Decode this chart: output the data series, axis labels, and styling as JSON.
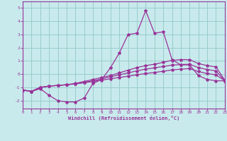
{
  "background_color": "#c8eaec",
  "line_color": "#993399",
  "grid_color": "#99cccc",
  "xlabel": "Windchill (Refroidissement éolien,°C)",
  "xlim": [
    0,
    23
  ],
  "ylim": [
    -2.6,
    5.5
  ],
  "yticks": [
    -2,
    -1,
    0,
    1,
    2,
    3,
    4,
    5
  ],
  "xticks": [
    0,
    1,
    2,
    3,
    4,
    5,
    6,
    7,
    8,
    9,
    10,
    11,
    12,
    13,
    14,
    15,
    16,
    17,
    18,
    19,
    20,
    21,
    22,
    23
  ],
  "series": [
    {
      "x": [
        0,
        1,
        2,
        3,
        4,
        5,
        6,
        7,
        8,
        9,
        10,
        11,
        12,
        13,
        14,
        15,
        16,
        17,
        18,
        19,
        20,
        21,
        22,
        23
      ],
      "y": [
        -1.2,
        -1.3,
        -1.1,
        -1.6,
        -2.0,
        -2.1,
        -2.1,
        -1.8,
        -0.7,
        -0.4,
        0.5,
        1.6,
        3.0,
        3.1,
        4.8,
        3.1,
        3.2,
        1.1,
        0.7,
        0.7,
        -0.1,
        -0.4,
        -0.5,
        -0.5
      ]
    },
    {
      "x": [
        0,
        1,
        2,
        3,
        4,
        5,
        6,
        7,
        8,
        9,
        10,
        11,
        12,
        13,
        14,
        15,
        16,
        17,
        18,
        19,
        20,
        21,
        22,
        23
      ],
      "y": [
        -1.2,
        -1.3,
        -1.0,
        -0.9,
        -0.85,
        -0.8,
        -0.7,
        -0.55,
        -0.4,
        -0.25,
        -0.1,
        0.1,
        0.3,
        0.5,
        0.65,
        0.75,
        0.9,
        1.05,
        1.1,
        1.1,
        0.8,
        0.65,
        0.55,
        -0.45
      ]
    },
    {
      "x": [
        0,
        1,
        2,
        3,
        4,
        5,
        6,
        7,
        8,
        9,
        10,
        11,
        12,
        13,
        14,
        15,
        16,
        17,
        18,
        19,
        20,
        21,
        22,
        23
      ],
      "y": [
        -1.2,
        -1.3,
        -1.0,
        -0.9,
        -0.85,
        -0.8,
        -0.72,
        -0.62,
        -0.5,
        -0.35,
        -0.2,
        -0.05,
        0.1,
        0.25,
        0.38,
        0.48,
        0.58,
        0.68,
        0.73,
        0.75,
        0.5,
        0.35,
        0.25,
        -0.5
      ]
    },
    {
      "x": [
        0,
        1,
        2,
        3,
        4,
        5,
        6,
        7,
        8,
        9,
        10,
        11,
        12,
        13,
        14,
        15,
        16,
        17,
        18,
        19,
        20,
        21,
        22,
        23
      ],
      "y": [
        -1.2,
        -1.3,
        -1.0,
        -0.9,
        -0.85,
        -0.8,
        -0.73,
        -0.65,
        -0.55,
        -0.45,
        -0.35,
        -0.25,
        -0.15,
        -0.05,
        0.05,
        0.13,
        0.22,
        0.32,
        0.38,
        0.42,
        0.2,
        0.05,
        -0.05,
        -0.5
      ]
    }
  ]
}
